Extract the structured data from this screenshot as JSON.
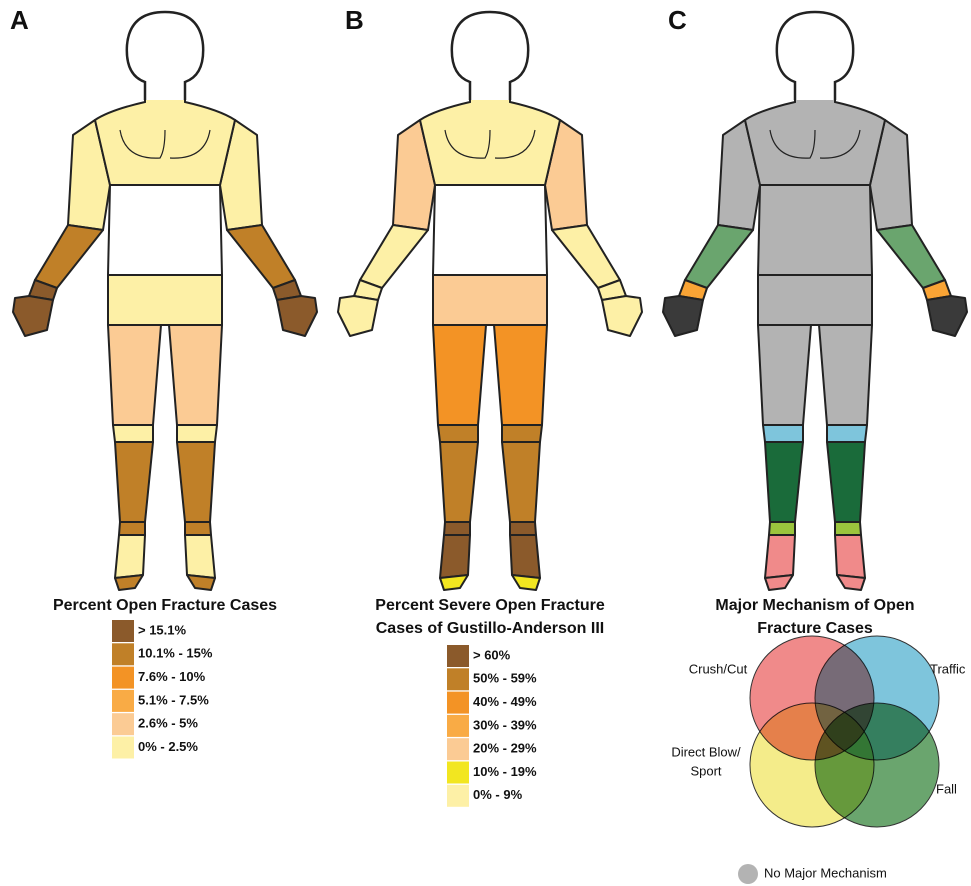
{
  "panels": [
    {
      "letter": "A",
      "title": [
        "Percent Open Fracture Cases"
      ],
      "legend": [
        {
          "label": "> 15.1%",
          "color": "#8b5a2b"
        },
        {
          "label": "10.1% - 15%",
          "color": "#c08028"
        },
        {
          "label": "7.6% - 10%",
          "color": "#f39325"
        },
        {
          "label": "5.1% - 7.5%",
          "color": "#f9ab45"
        },
        {
          "label": "2.6% - 5%",
          "color": "#fbcb94"
        },
        {
          "label": "0% - 2.5%",
          "color": "#fdf0a6"
        }
      ]
    },
    {
      "letter": "B",
      "title": [
        "Percent Severe Open Fracture",
        "Cases of Gustillo-Anderson III"
      ],
      "legend": [
        {
          "label": "> 60%",
          "color": "#8b5a2b"
        },
        {
          "label": "50% - 59%",
          "color": "#c08028"
        },
        {
          "label": "40% - 49%",
          "color": "#f39325"
        },
        {
          "label": "30% - 39%",
          "color": "#f9ab45"
        },
        {
          "label": "20% - 29%",
          "color": "#fbcb94"
        },
        {
          "label": "10% - 19%",
          "color": "#f2e620"
        },
        {
          "label": "0% - 9%",
          "color": "#fdf0a6"
        }
      ]
    },
    {
      "letter": "C",
      "title": [
        "Major Mechanism of Open",
        "Fracture Cases"
      ],
      "venn": [
        {
          "label": [
            "Crush/Cut"
          ],
          "color": "#f08a8a"
        },
        {
          "label": [
            "Traffic"
          ],
          "color": "#7ec5dc"
        },
        {
          "label": [
            "Direct Blow/",
            "Sport"
          ],
          "color": "#f4ec8a"
        },
        {
          "label": [
            "Fall"
          ],
          "color": "#6aa56e"
        }
      ],
      "none_label": "No Major Mechanism",
      "none_color": "#b3b3b3"
    }
  ]
}
